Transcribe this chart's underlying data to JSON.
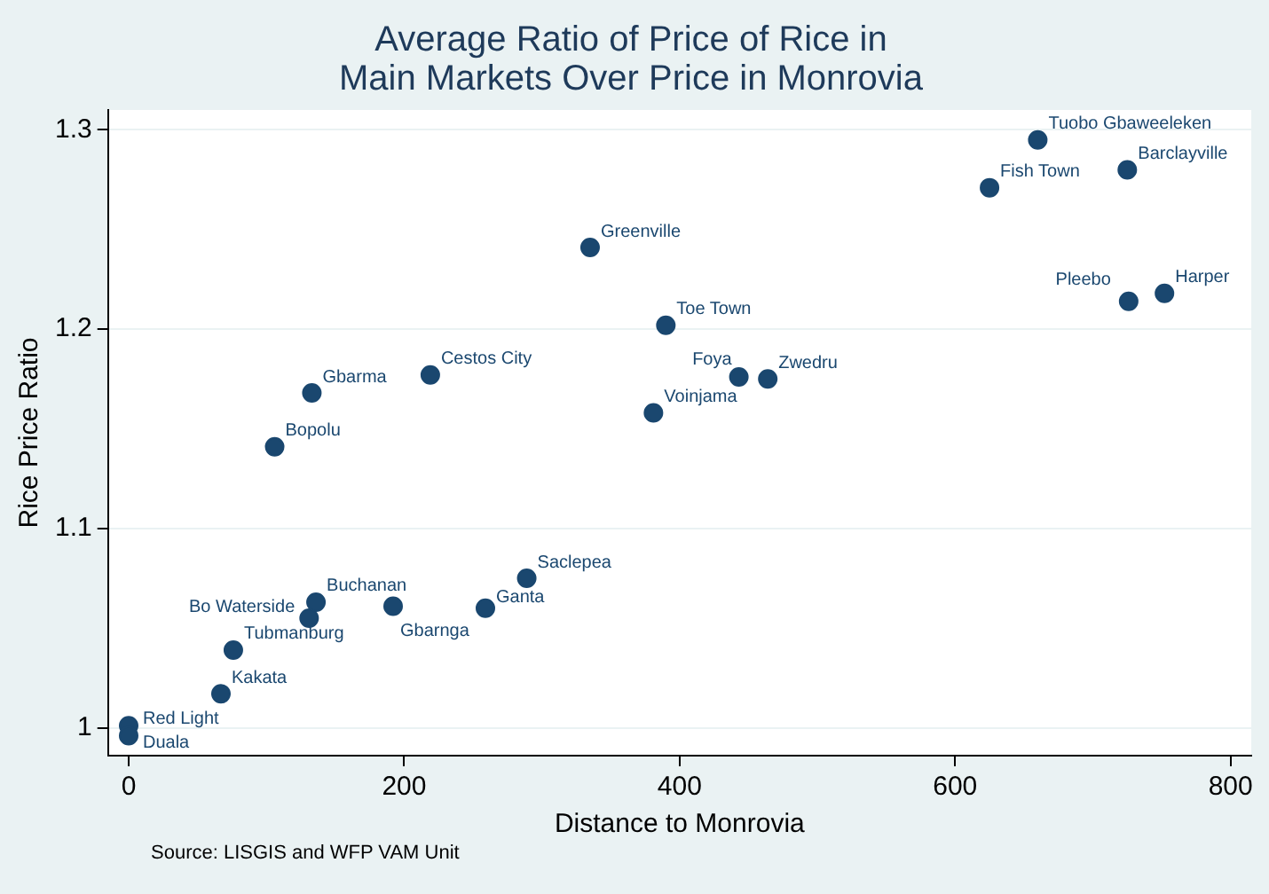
{
  "chart_data": {
    "type": "scatter",
    "title": "Average Ratio of Price of Rice in\nMain Markets Over Price in Monrovia",
    "xlabel": "Distance to Monrovia",
    "ylabel": "Rice Price Ratio",
    "x": [
      0,
      0,
      67,
      76,
      131,
      136,
      192,
      259,
      289,
      106,
      133,
      219,
      335,
      390,
      381,
      443,
      464,
      625,
      660,
      725,
      726,
      752
    ],
    "series": [
      {
        "color": "#1a476f",
        "values": [
          1.001,
          0.996,
          1.017,
          1.039,
          1.055,
          1.063,
          1.061,
          1.06,
          1.075,
          1.141,
          1.168,
          1.177,
          1.241,
          1.202,
          1.158,
          1.176,
          1.175,
          1.271,
          1.295,
          1.28,
          1.214,
          1.218
        ]
      }
    ],
    "xlim": [
      -15,
      815
    ],
    "ylim": [
      0.986,
      1.31
    ],
    "xticks": [
      0,
      200,
      400,
      600,
      800
    ],
    "yticks": [
      1,
      1.1,
      1.2,
      1.3
    ],
    "grid": "y",
    "marker": "circle",
    "legend": false,
    "annotations": [
      {
        "text": "Red Light",
        "x": 0,
        "y": 1.001
      },
      {
        "text": "Duala",
        "x": 0,
        "y": 0.996
      },
      {
        "text": "Kakata",
        "x": 67,
        "y": 1.017
      },
      {
        "text": "Tubmanburg",
        "x": 76,
        "y": 1.039
      },
      {
        "text": "Bo Waterside",
        "x": 131,
        "y": 1.055
      },
      {
        "text": "Buchanan",
        "x": 136,
        "y": 1.063
      },
      {
        "text": "Gbarnga",
        "x": 192,
        "y": 1.061
      },
      {
        "text": "Ganta",
        "x": 259,
        "y": 1.06
      },
      {
        "text": "Saclepea",
        "x": 289,
        "y": 1.075
      },
      {
        "text": "Bopolu",
        "x": 106,
        "y": 1.141
      },
      {
        "text": "Gbarma",
        "x": 133,
        "y": 1.168
      },
      {
        "text": "Cestos City",
        "x": 219,
        "y": 1.177
      },
      {
        "text": "Greenville",
        "x": 335,
        "y": 1.241
      },
      {
        "text": "Toe Town",
        "x": 390,
        "y": 1.202
      },
      {
        "text": "Voinjama",
        "x": 381,
        "y": 1.158
      },
      {
        "text": "Foya",
        "x": 443,
        "y": 1.176
      },
      {
        "text": "Zwedru",
        "x": 464,
        "y": 1.175
      },
      {
        "text": "Fish Town",
        "x": 625,
        "y": 1.271
      },
      {
        "text": "Tuobo Gbaweeleken",
        "x": 660,
        "y": 1.295
      },
      {
        "text": "Barclayville",
        "x": 725,
        "y": 1.28
      },
      {
        "text": "Pleebo",
        "x": 726,
        "y": 1.214
      },
      {
        "text": "Harper",
        "x": 752,
        "y": 1.218
      },
      "Source: LISGIS and WFP VAM Unit"
    ]
  }
}
